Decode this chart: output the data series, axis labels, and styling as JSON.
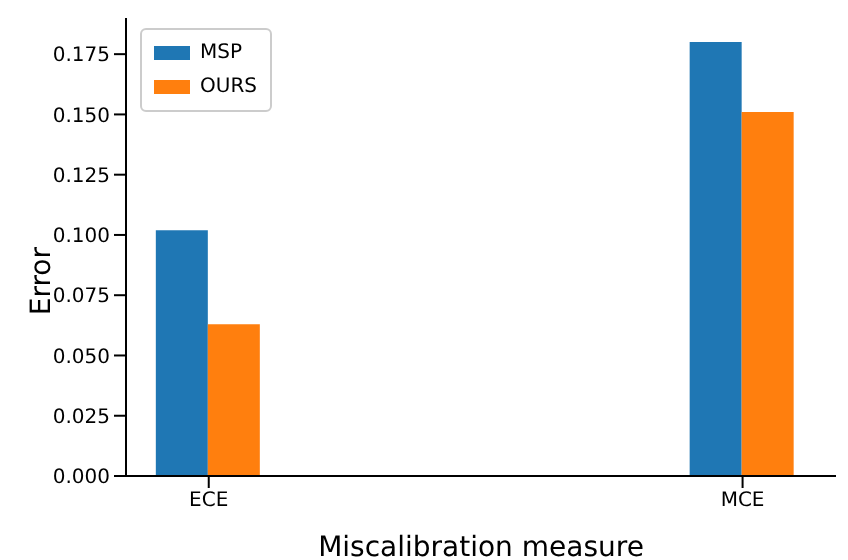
{
  "chart_data": {
    "type": "bar",
    "xlabel": "Miscalibration measure",
    "ylabel": "Error",
    "categories": [
      "ECE",
      "MCE"
    ],
    "series": [
      {
        "name": "MSP",
        "color": "#1f77b4",
        "values": [
          0.102,
          0.18
        ]
      },
      {
        "name": "OURS",
        "color": "#ff7f0e",
        "values": [
          0.063,
          0.151
        ]
      }
    ],
    "ylim": [
      0,
      0.19
    ],
    "yticks": [
      {
        "value": 0,
        "label": "0.000"
      },
      {
        "value": 0.025,
        "label": "0.025"
      },
      {
        "value": 0.05,
        "label": "0.050"
      },
      {
        "value": 0.075,
        "label": "0.075"
      },
      {
        "value": 0.1,
        "label": "0.100"
      },
      {
        "value": 0.125,
        "label": "0.125"
      },
      {
        "value": 0.15,
        "label": "0.150"
      },
      {
        "value": 0.175,
        "label": "0.175"
      }
    ],
    "grid": false,
    "legend": "top left"
  }
}
